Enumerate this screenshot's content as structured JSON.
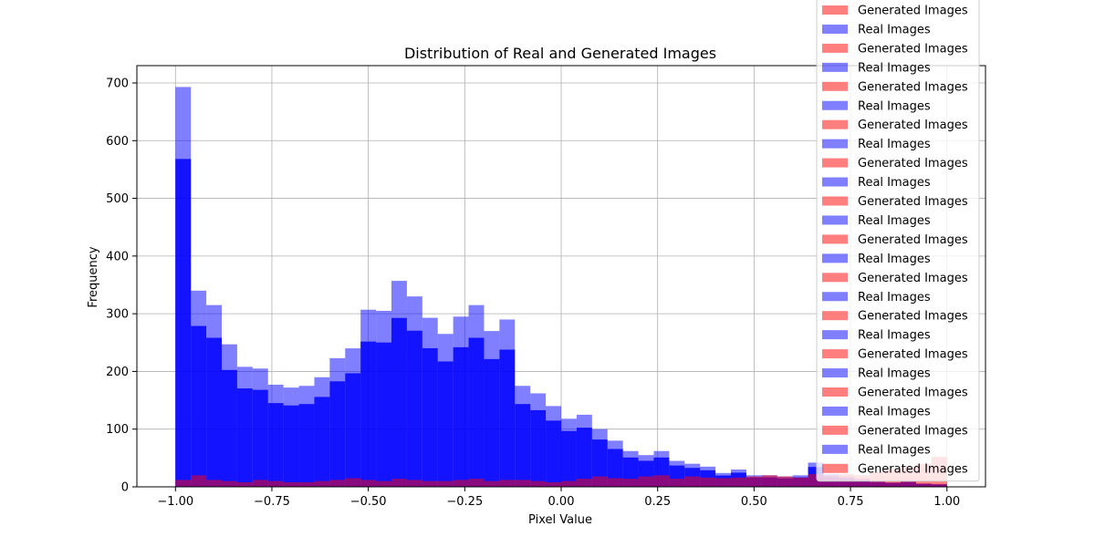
{
  "chart_data": {
    "type": "bar",
    "title": "Distribution of Real and Generated Images",
    "xlabel": "Pixel Value",
    "ylabel": "Frequency",
    "xlim": [
      -1.1,
      1.1
    ],
    "ylim": [
      0,
      730
    ],
    "xticks": [
      -1.0,
      -0.75,
      -0.5,
      -0.25,
      0.0,
      0.25,
      0.5,
      0.75,
      1.0
    ],
    "xtick_labels": [
      "−1.00",
      "−0.75",
      "−0.50",
      "−0.25",
      "0.00",
      "0.25",
      "0.50",
      "0.75",
      "1.00"
    ],
    "yticks": [
      0,
      100,
      200,
      300,
      400,
      500,
      600,
      700
    ],
    "ytick_labels": [
      "0",
      "100",
      "200",
      "300",
      "400",
      "500",
      "600",
      "700"
    ],
    "grid": true,
    "legend_position": "top-right",
    "legend_entries": [
      "Generated Images",
      "Real Images",
      "Generated Images",
      "Real Images",
      "Generated Images",
      "Real Images",
      "Generated Images",
      "Real Images",
      "Generated Images",
      "Real Images",
      "Generated Images",
      "Real Images",
      "Generated Images",
      "Real Images",
      "Generated Images",
      "Real Images",
      "Generated Images",
      "Real Images",
      "Generated Images",
      "Real Images",
      "Generated Images",
      "Real Images",
      "Generated Images",
      "Real Images",
      "Generated Images"
    ],
    "bin_edges": [
      -1.0,
      -0.96,
      -0.92,
      -0.88,
      -0.84,
      -0.8,
      -0.76,
      -0.72,
      -0.68,
      -0.64,
      -0.6,
      -0.56,
      -0.52,
      -0.48,
      -0.44,
      -0.4,
      -0.36,
      -0.32,
      -0.28,
      -0.24,
      -0.2,
      -0.16,
      -0.12,
      -0.08,
      -0.04,
      0.0,
      0.04,
      0.08,
      0.12,
      0.16,
      0.2,
      0.24,
      0.28,
      0.32,
      0.36,
      0.4,
      0.44,
      0.48,
      0.52,
      0.56,
      0.6,
      0.64,
      0.68,
      0.72,
      0.76,
      0.8,
      0.84,
      0.88,
      0.92,
      0.96,
      1.0
    ],
    "series": [
      {
        "name": "Real Images",
        "color": "#0000ff",
        "values": [
          693,
          340,
          315,
          247,
          208,
          205,
          177,
          172,
          175,
          190,
          223,
          240,
          307,
          305,
          357,
          330,
          293,
          265,
          295,
          315,
          270,
          290,
          175,
          162,
          140,
          118,
          125,
          100,
          80,
          62,
          55,
          62,
          45,
          40,
          35,
          24,
          30,
          20,
          20,
          18,
          20,
          42,
          22,
          18,
          14,
          10,
          8,
          10,
          6,
          5
        ]
      },
      {
        "name": "Generated Images",
        "color": "#ff0000",
        "values": [
          12,
          20,
          12,
          10,
          8,
          12,
          10,
          8,
          8,
          10,
          12,
          15,
          12,
          10,
          14,
          12,
          10,
          10,
          12,
          14,
          10,
          12,
          12,
          10,
          8,
          10,
          14,
          18,
          15,
          14,
          18,
          20,
          14,
          18,
          16,
          15,
          16,
          18,
          20,
          18,
          16,
          22,
          20,
          22,
          20,
          26,
          30,
          35,
          40,
          52
        ]
      }
    ]
  }
}
